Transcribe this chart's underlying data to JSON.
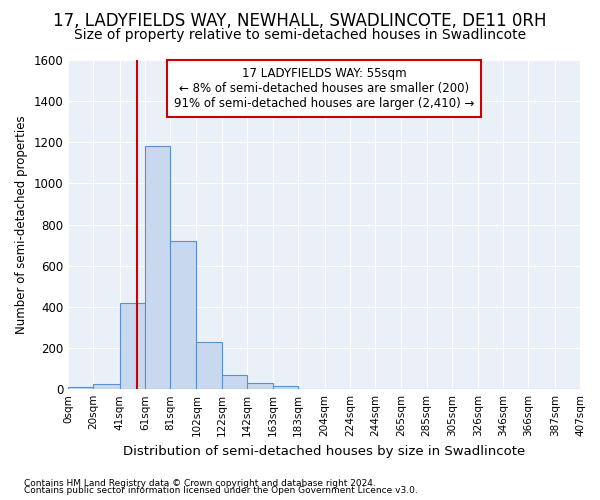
{
  "title": "17, LADYFIELDS WAY, NEWHALL, SWADLINCOTE, DE11 0RH",
  "subtitle": "Size of property relative to semi-detached houses in Swadlincote",
  "xlabel": "Distribution of semi-detached houses by size in Swadlincote",
  "ylabel": "Number of semi-detached properties",
  "footnote1": "Contains HM Land Registry data © Crown copyright and database right 2024.",
  "footnote2": "Contains public sector information licensed under the Open Government Licence v3.0.",
  "bar_edges": [
    0,
    20,
    41,
    61,
    81,
    102,
    122,
    142,
    163,
    183,
    204,
    224,
    244,
    265,
    285,
    305,
    326,
    346,
    366,
    387,
    407
  ],
  "bar_heights": [
    10,
    25,
    420,
    1180,
    720,
    230,
    70,
    30,
    15,
    0,
    0,
    0,
    0,
    0,
    0,
    0,
    0,
    0,
    0,
    0
  ],
  "bar_color": "#c8d8ee",
  "bar_edge_color": "#5a90cc",
  "vline_x": 55,
  "vline_color": "#cc0000",
  "ylim": [
    0,
    1600
  ],
  "yticks": [
    0,
    200,
    400,
    600,
    800,
    1000,
    1200,
    1400,
    1600
  ],
  "annotation_text": "17 LADYFIELDS WAY: 55sqm\n← 8% of semi-detached houses are smaller (200)\n91% of semi-detached houses are larger (2,410) →",
  "annotation_box_color": "#ffffff",
  "annotation_box_edge": "#cc0000",
  "bg_color": "#ffffff",
  "plot_bg_color": "#eaf0f8",
  "title_fontsize": 12,
  "subtitle_fontsize": 10,
  "tick_labels": [
    "0sqm",
    "20sqm",
    "41sqm",
    "61sqm",
    "81sqm",
    "102sqm",
    "122sqm",
    "142sqm",
    "163sqm",
    "183sqm",
    "204sqm",
    "224sqm",
    "244sqm",
    "265sqm",
    "285sqm",
    "305sqm",
    "326sqm",
    "346sqm",
    "366sqm",
    "387sqm",
    "407sqm"
  ]
}
